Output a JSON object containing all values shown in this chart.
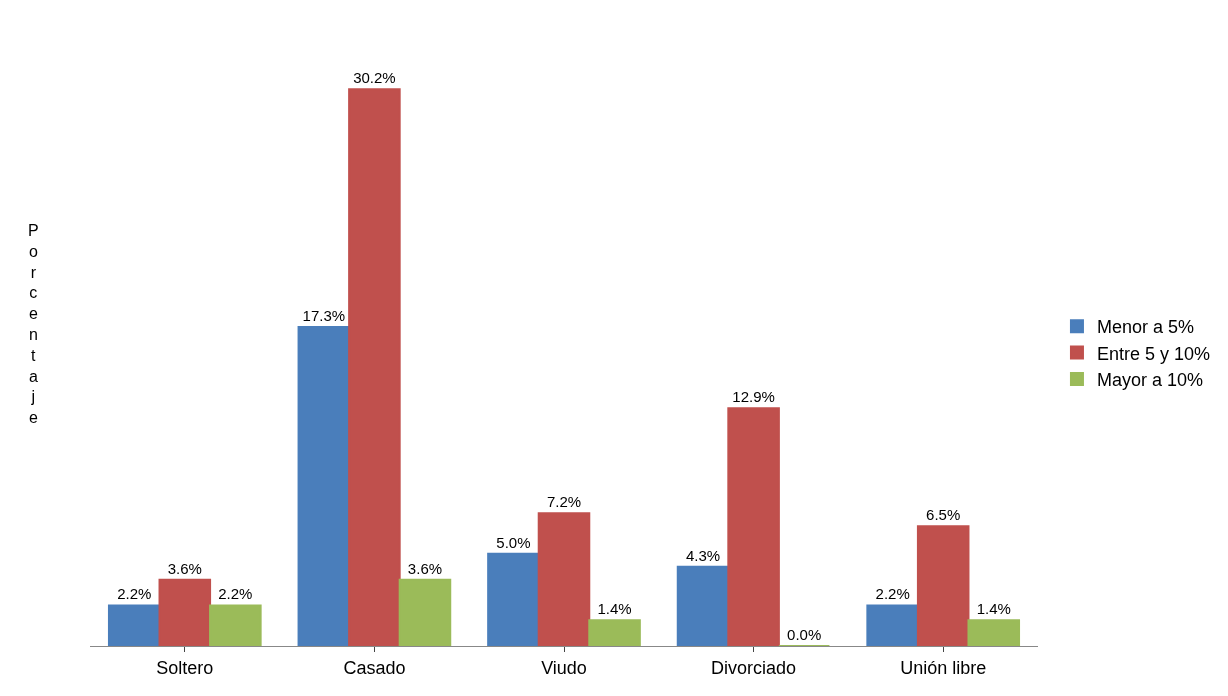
{
  "chart_data": {
    "type": "bar",
    "ylabel": "Porcentaje",
    "categories": [
      "Soltero",
      "Casado",
      "Viudo",
      "Divorciado",
      "Unión libre"
    ],
    "series": [
      {
        "name": "Menor a 5%",
        "color": "#4a7ebb",
        "values": [
          2.2,
          17.3,
          5.0,
          4.3,
          2.2
        ],
        "value_labels": [
          "2.2%",
          "17.3%",
          "5.0%",
          "4.3%",
          "2.2%"
        ]
      },
      {
        "name": "Entre 5 y 10%",
        "color": "#c0504d",
        "values": [
          3.6,
          30.2,
          7.2,
          12.9,
          6.5
        ],
        "value_labels": [
          "3.6%",
          "30.2%",
          "7.2%",
          "12.9%",
          "6.5%"
        ]
      },
      {
        "name": "Mayor a 10%",
        "color": "#9bbb59",
        "values": [
          2.2,
          3.6,
          1.4,
          0.0,
          1.4
        ],
        "value_labels": [
          "2.2%",
          "3.6%",
          "1.4%",
          "0.0%",
          "1.4%"
        ]
      }
    ],
    "legend": "right"
  }
}
